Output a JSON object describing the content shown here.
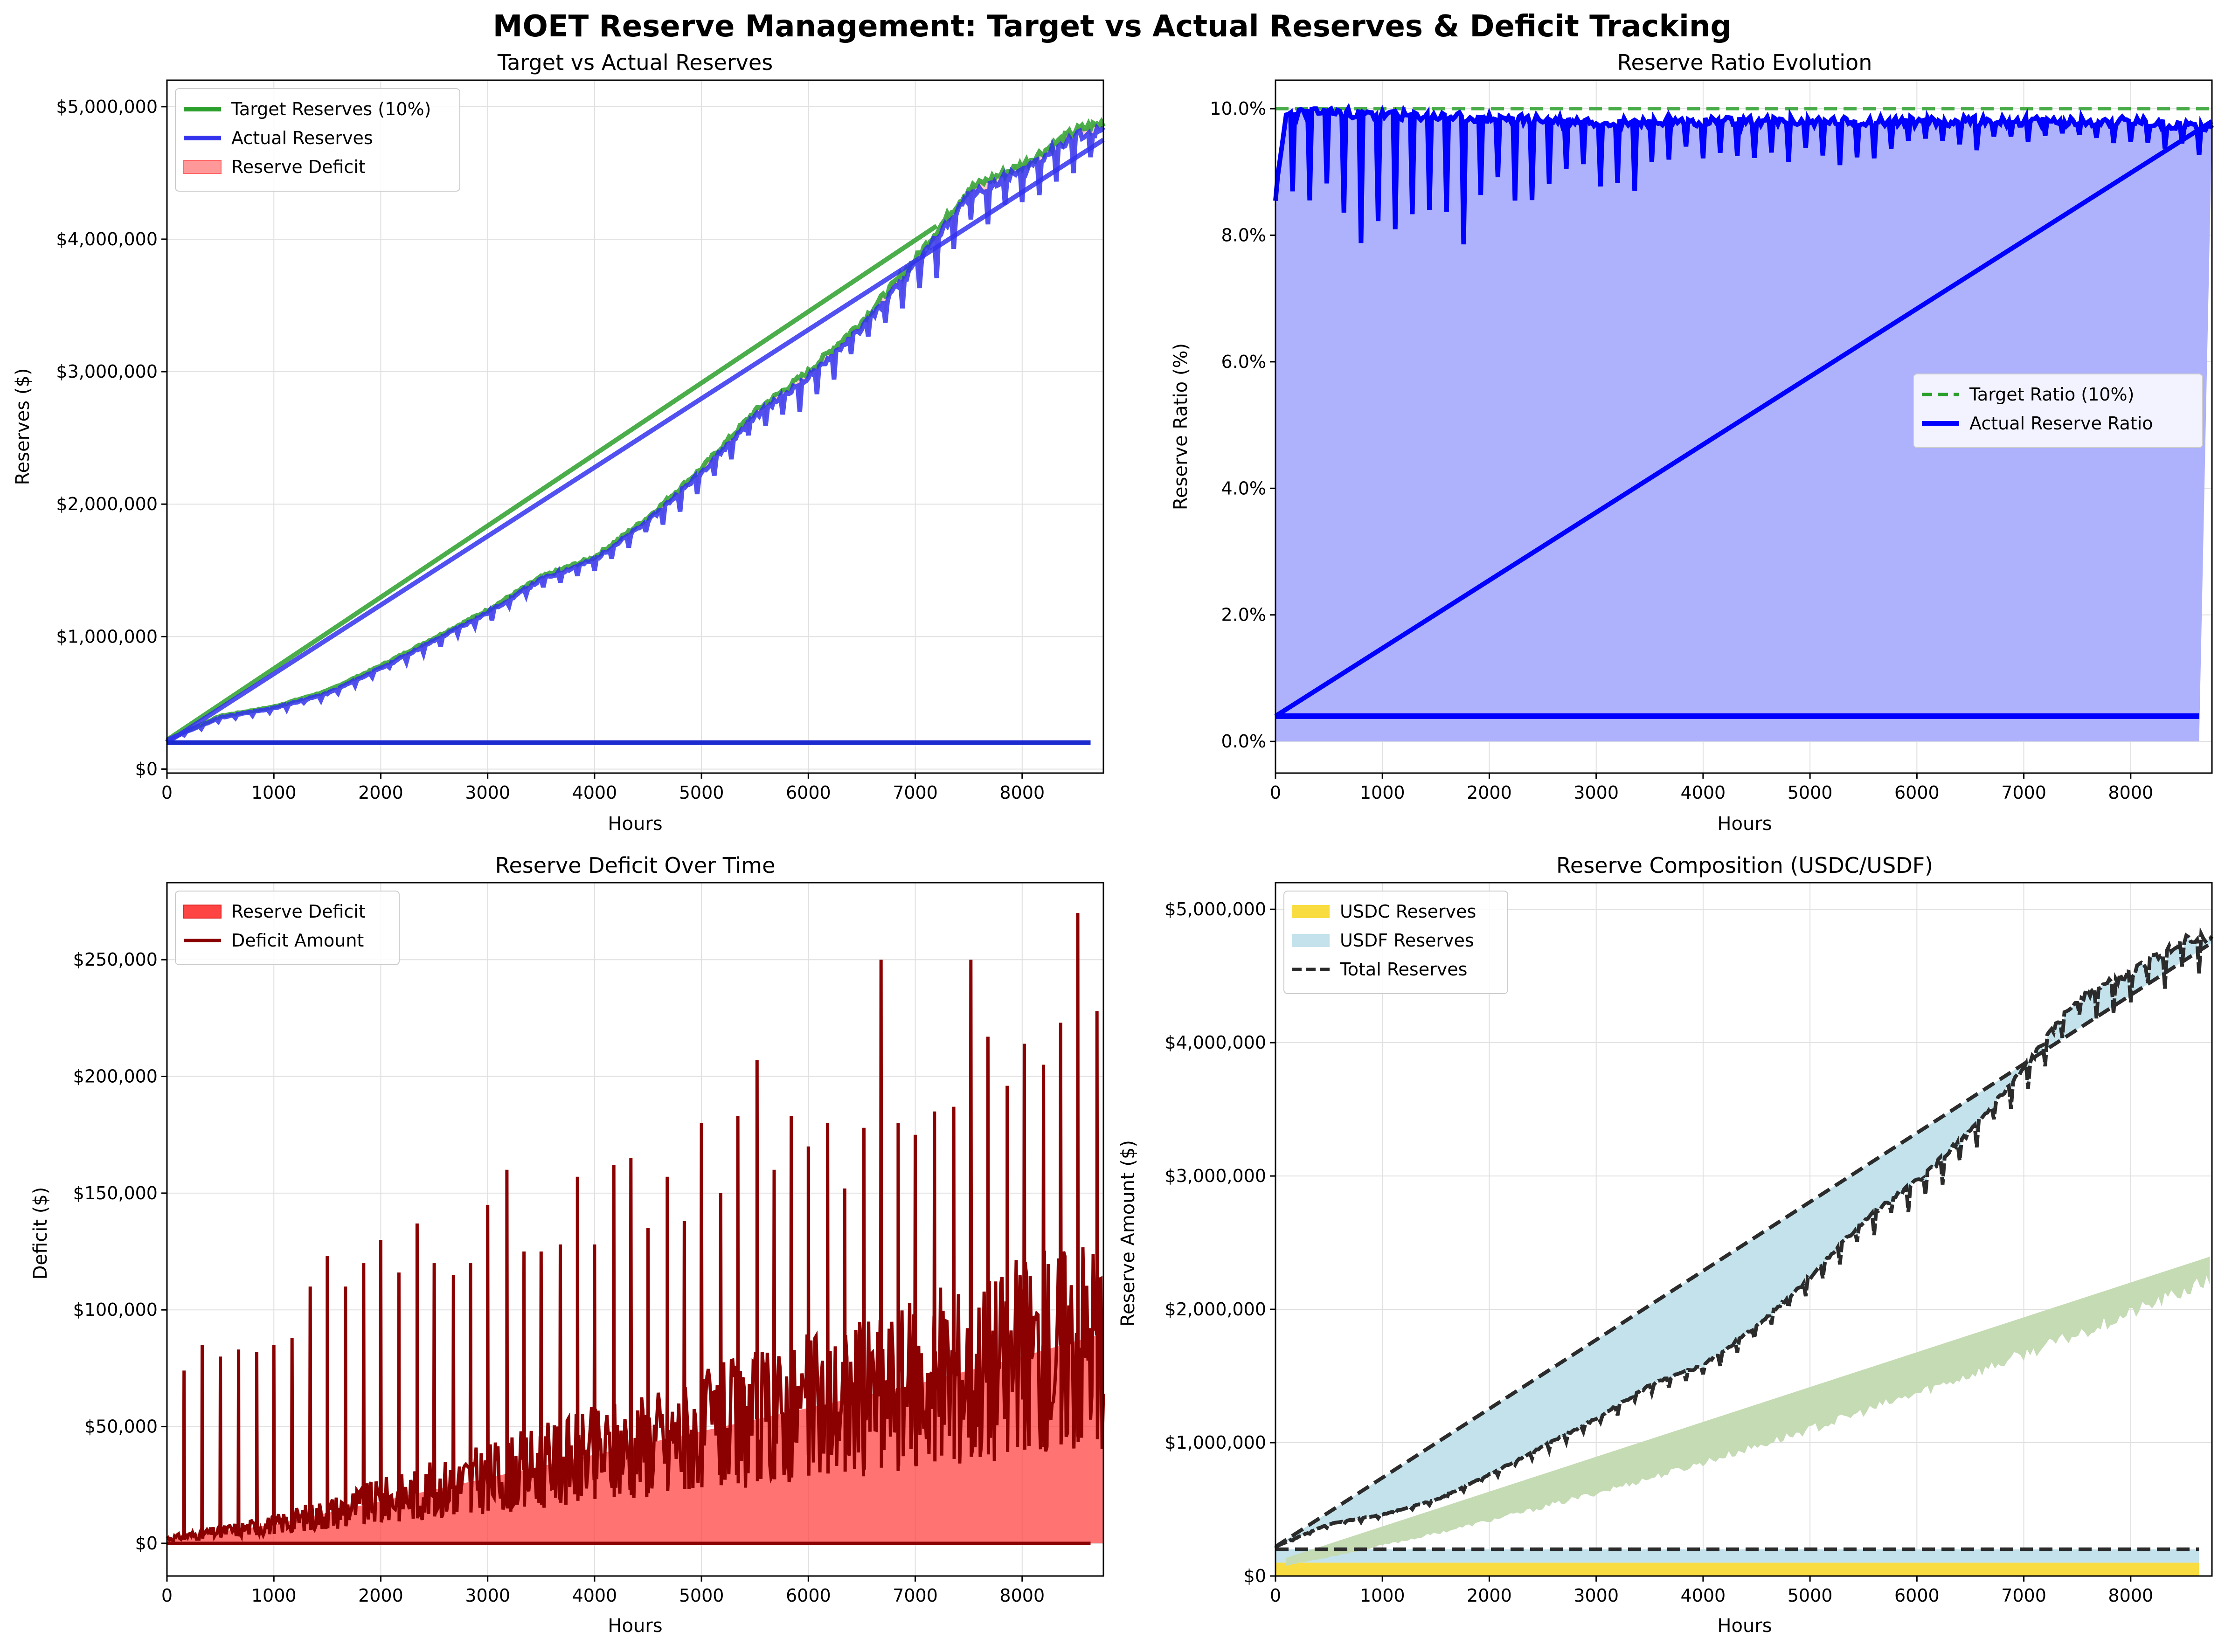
{
  "figure": {
    "title": "MOET Reserve Management: Target vs Actual Reserves & Deficit Tracking"
  },
  "colors": {
    "target": "#2ca02c",
    "actual": "#0000ff",
    "deficit_fill": "#ff9999",
    "deficit_line": "#8b0000",
    "deficit_fill_strong": "#ff4444",
    "ratio_fill": "#aeb1fb",
    "usdc": "#f9dc3f",
    "usdf": "#c3e2ec",
    "green_band": "#c5dbb4",
    "total": "#2b2b2b"
  },
  "chart_data": [
    {
      "id": "p1",
      "type": "line",
      "title": "Target vs Actual Reserves",
      "xlabel": "Hours",
      "ylabel": "Reserves ($)",
      "xlim": [
        0,
        8760
      ],
      "ylim": [
        -30000,
        5200000
      ],
      "xticks": [
        0,
        1000,
        2000,
        3000,
        4000,
        5000,
        6000,
        7000,
        8000
      ],
      "xtick_labels": [
        "0",
        "1000",
        "2000",
        "3000",
        "4000",
        "5000",
        "6000",
        "7000",
        "8000"
      ],
      "yticks": [
        0,
        1000000,
        2000000,
        3000000,
        4000000,
        5000000
      ],
      "ytick_labels": [
        "$0",
        "$1,000,000",
        "$2,000,000",
        "$3,000,000",
        "$4,000,000",
        "$5,000,000"
      ],
      "grid": true,
      "legend_position": "upper left",
      "legend": [
        "Target Reserves (10%)",
        "Actual Reserves",
        "Reserve Deficit"
      ],
      "series": [
        {
          "name": "Target Reserves (10%)",
          "x": [
            0,
            500,
            1000,
            1500,
            2000,
            2500,
            3000,
            3500,
            4000,
            4500,
            5000,
            5500,
            6000,
            6500,
            7000,
            7500,
            8000,
            8500,
            8760
          ],
          "values": [
            220000,
            400000,
            470000,
            590000,
            780000,
            990000,
            1200000,
            1450000,
            1600000,
            1900000,
            2270000,
            2700000,
            3000000,
            3380000,
            3850000,
            4380000,
            4560000,
            4820000,
            4880000
          ]
        },
        {
          "name": "Actual Reserves",
          "x": [
            0,
            500,
            1000,
            1500,
            2000,
            2500,
            3000,
            3500,
            4000,
            4500,
            5000,
            5500,
            6000,
            6500,
            7000,
            7500,
            8000,
            8500,
            8760
          ],
          "values": [
            220000,
            390000,
            460000,
            570000,
            760000,
            970000,
            1180000,
            1430000,
            1580000,
            1870000,
            2240000,
            2660000,
            2960000,
            3330000,
            3800000,
            4330000,
            4520000,
            4780000,
            4820000
          ]
        },
        {
          "name": "Target Reserves (10%) linear",
          "x": [
            0,
            7200
          ],
          "values": [
            220000,
            4100000
          ]
        },
        {
          "name": "Actual Reserves linear",
          "x": [
            0,
            8760
          ],
          "values": [
            200000,
            4750000
          ]
        },
        {
          "name": "Actual Reserves baseline",
          "x": [
            0,
            8640
          ],
          "values": [
            200000,
            200000
          ]
        }
      ]
    },
    {
      "id": "p2",
      "type": "line",
      "title": "Reserve Ratio Evolution",
      "xlabel": "Hours",
      "ylabel": "Reserve Ratio (%)",
      "xlim": [
        0,
        8760
      ],
      "ylim": [
        -0.5,
        10.45
      ],
      "xticks": [
        0,
        1000,
        2000,
        3000,
        4000,
        5000,
        6000,
        7000,
        8000
      ],
      "xtick_labels": [
        "0",
        "1000",
        "2000",
        "3000",
        "4000",
        "5000",
        "6000",
        "7000",
        "8000"
      ],
      "yticks": [
        0,
        2,
        4,
        6,
        8,
        10
      ],
      "ytick_labels": [
        "0.0%",
        "2.0%",
        "4.0%",
        "6.0%",
        "8.0%",
        "10.0%"
      ],
      "grid": true,
      "legend_position": "center right",
      "legend": [
        "Target Ratio (10%)",
        "Actual Reserve Ratio"
      ],
      "series": [
        {
          "name": "Target Ratio (10%)",
          "x": [
            0,
            8760
          ],
          "values": [
            10,
            10
          ]
        },
        {
          "name": "Actual Reserve Ratio",
          "x": [
            0,
            100,
            300,
            500,
            1000,
            2000,
            3000,
            4000,
            5000,
            6000,
            7000,
            8000,
            8760
          ],
          "values": [
            8.6,
            9.9,
            9.95,
            9.95,
            9.9,
            9.85,
            9.8,
            9.8,
            9.8,
            9.8,
            9.8,
            9.8,
            9.7
          ]
        },
        {
          "name": "Actual Reserve Ratio ramp",
          "x": [
            0,
            8760
          ],
          "values": [
            0.4,
            9.8
          ]
        },
        {
          "name": "Actual Reserve Ratio baseline",
          "x": [
            0,
            8640
          ],
          "values": [
            0.4,
            0.4
          ]
        }
      ]
    },
    {
      "id": "p3",
      "type": "area",
      "title": "Reserve Deficit Over Time",
      "xlabel": "Hours",
      "ylabel": "Deficit ($)",
      "xlim": [
        0,
        8760
      ],
      "ylim": [
        -14000,
        283000
      ],
      "xticks": [
        0,
        1000,
        2000,
        3000,
        4000,
        5000,
        6000,
        7000,
        8000
      ],
      "xtick_labels": [
        "0",
        "1000",
        "2000",
        "3000",
        "4000",
        "5000",
        "6000",
        "7000",
        "8000"
      ],
      "yticks": [
        0,
        50000,
        100000,
        150000,
        200000,
        250000
      ],
      "ytick_labels": [
        "$0",
        "$50,000",
        "$100,000",
        "$150,000",
        "$200,000",
        "$250,000"
      ],
      "grid": true,
      "legend_position": "upper left",
      "legend": [
        "Reserve Deficit",
        "Deficit Amount"
      ],
      "series": [
        {
          "name": "Deficit Amount",
          "x": [
            0,
            1000,
            2000,
            3000,
            4000,
            5000,
            6000,
            7000,
            8000,
            8760
          ],
          "values": [
            2000,
            8000,
            18000,
            28000,
            38000,
            48000,
            58000,
            68000,
            80000,
            90000
          ]
        },
        {
          "name": "Deficit spikes",
          "x": [
            160,
            330,
            500,
            670,
            840,
            1000,
            1170,
            1340,
            1500,
            1670,
            1840,
            2000,
            2170,
            2340,
            2500,
            2680,
            2840,
            3000,
            3180,
            3340,
            3500,
            3680,
            3840,
            4000,
            4180,
            4340,
            4500,
            4680,
            4840,
            5000,
            5180,
            5340,
            5520,
            5680,
            5840,
            6000,
            6180,
            6340,
            6520,
            6680,
            6840,
            7000,
            7180,
            7360,
            7520,
            7680,
            7860,
            8020,
            8200,
            8360,
            8520,
            8700
          ],
          "values": [
            74000,
            85000,
            80000,
            83000,
            82000,
            85000,
            88000,
            110000,
            123000,
            110000,
            120000,
            130000,
            116000,
            137000,
            120000,
            115000,
            120000,
            145000,
            160000,
            125000,
            125000,
            128000,
            157000,
            128000,
            162000,
            165000,
            135000,
            157000,
            138000,
            180000,
            150000,
            183000,
            207000,
            160000,
            183000,
            170000,
            180000,
            152000,
            178000,
            250000,
            180000,
            175000,
            185000,
            187000,
            250000,
            217000,
            196000,
            214000,
            205000,
            223000,
            270000,
            228000
          ]
        }
      ]
    },
    {
      "id": "p4",
      "type": "area",
      "title": "Reserve Composition (USDC/USDF)",
      "xlabel": "Hours",
      "ylabel": "Reserve Amount ($)",
      "xlim": [
        0,
        8760
      ],
      "ylim": [
        0,
        5200000
      ],
      "xticks": [
        0,
        1000,
        2000,
        3000,
        4000,
        5000,
        6000,
        7000,
        8000
      ],
      "xtick_labels": [
        "0",
        "1000",
        "2000",
        "3000",
        "4000",
        "5000",
        "6000",
        "7000",
        "8000"
      ],
      "yticks": [
        0,
        1000000,
        2000000,
        3000000,
        4000000,
        5000000
      ],
      "ytick_labels": [
        "$0",
        "$1,000,000",
        "$2,000,000",
        "$3,000,000",
        "$4,000,000",
        "$5,000,000"
      ],
      "grid": true,
      "legend_position": "upper left",
      "legend": [
        "USDC Reserves",
        "USDF Reserves",
        "Total Reserves"
      ],
      "series": [
        {
          "name": "USDC Reserves",
          "x": [
            0,
            8640
          ],
          "values": [
            100000,
            100000
          ]
        },
        {
          "name": "USDF Reserves",
          "x": [
            0,
            8640
          ],
          "values": [
            200000,
            200000
          ]
        },
        {
          "name": "Total Reserves",
          "x": [
            0,
            500,
            1000,
            1500,
            2000,
            2500,
            3000,
            3500,
            4000,
            4500,
            5000,
            5500,
            6000,
            6500,
            7000,
            7500,
            8000,
            8500,
            8760
          ],
          "values": [
            220000,
            390000,
            460000,
            570000,
            760000,
            970000,
            1180000,
            1430000,
            1580000,
            1870000,
            2240000,
            2660000,
            2960000,
            3330000,
            3800000,
            4330000,
            4520000,
            4780000,
            4800000
          ]
        },
        {
          "name": "Total Reserves linear",
          "x": [
            0,
            8760
          ],
          "values": [
            220000,
            4750000
          ]
        },
        {
          "name": "Total Reserves baseline",
          "x": [
            0,
            8640
          ],
          "values": [
            200000,
            200000
          ]
        },
        {
          "name": "green band upper",
          "x": [
            0,
            8760
          ],
          "values": [
            110000,
            2400000
          ]
        },
        {
          "name": "green band lower",
          "x": [
            0,
            8760
          ],
          "values": [
            100000,
            2400000
          ]
        }
      ]
    }
  ]
}
